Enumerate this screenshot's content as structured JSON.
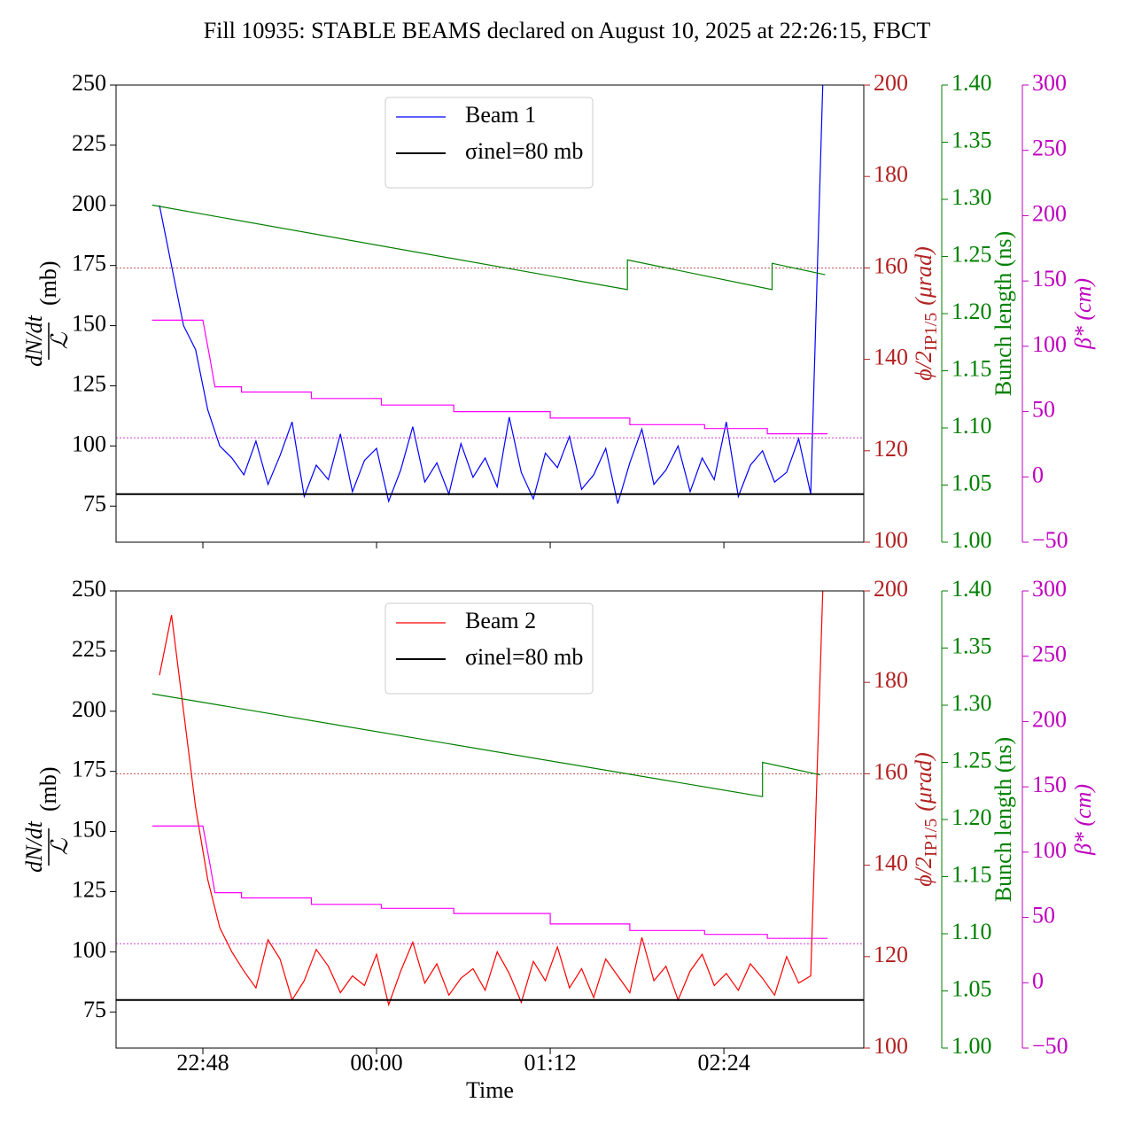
{
  "title": "Fill 10935: STABLE BEAMS declared on August 10, 2025 at 22:26:15, FBCT",
  "chart_data": [
    {
      "type": "line",
      "ylabel": [
        "dN/dt",
        "ℒ",
        "(mb)"
      ],
      "y2label": [
        "ϕ/2",
        "IP1/5",
        "(μrad)"
      ],
      "y3label": "Bunch length (ns)",
      "y4label": "β* (cm)",
      "axis_colors": {
        "y": "#000000",
        "y2": "#b22222",
        "y3": "#008000",
        "y4": "#bf00bf"
      },
      "xlim": [
        "22:12",
        "03:22"
      ],
      "xticks": [
        "22:48",
        "00:00",
        "01:12",
        "02:24"
      ],
      "xticklabels": false,
      "ylim": [
        60,
        250
      ],
      "yticks": [
        75,
        100,
        125,
        150,
        175,
        200,
        225,
        250
      ],
      "y2lim": [
        100,
        200
      ],
      "y2ticks": [
        100,
        120,
        140,
        160,
        180,
        200
      ],
      "y3lim": [
        1.0,
        1.4
      ],
      "y3ticks": [
        {
          "value": 1.0,
          "label": "1.00"
        },
        1.05,
        {
          "value": 1.1,
          "label": "1.10"
        },
        1.15,
        {
          "value": 1.2,
          "label": "1.20"
        },
        1.25,
        {
          "value": 1.3,
          "label": "1.30"
        },
        1.35,
        {
          "value": 1.4,
          "label": "1.40"
        }
      ],
      "y4lim": [
        -50,
        300
      ],
      "y4ticks": [
        {
          "value": -50,
          "label": "−50"
        },
        0,
        50,
        100,
        150,
        200,
        250,
        300
      ],
      "x": [
        "22:30",
        "22:35",
        "22:40",
        "22:45",
        "22:50",
        "22:55",
        "23:00",
        "23:05",
        "23:10",
        "23:15",
        "23:20",
        "23:25",
        "23:30",
        "23:35",
        "23:40",
        "23:45",
        "23:50",
        "23:55",
        "00:00",
        "00:05",
        "00:10",
        "00:15",
        "00:20",
        "00:25",
        "00:30",
        "00:35",
        "00:40",
        "00:45",
        "00:50",
        "00:55",
        "01:00",
        "01:05",
        "01:10",
        "01:15",
        "01:20",
        "01:25",
        "01:30",
        "01:35",
        "01:40",
        "01:45",
        "01:50",
        "01:55",
        "02:00",
        "02:05",
        "02:10",
        "02:15",
        "02:20",
        "02:25",
        "02:30",
        "02:35",
        "02:40",
        "02:45",
        "02:50",
        "02:55",
        "03:00",
        "03:05"
      ],
      "series": [
        {
          "name": "Beam 1",
          "color": "#0000ff",
          "axis": "y",
          "width": 1.2,
          "values": [
            200,
            175,
            150,
            140,
            115,
            100,
            95,
            88,
            102,
            84,
            96,
            110,
            79,
            92,
            86,
            105,
            81,
            94,
            99,
            77,
            90,
            108,
            85,
            93,
            80,
            101,
            87,
            95,
            83,
            112,
            89,
            78,
            97,
            91,
            104,
            82,
            88,
            99,
            76,
            93,
            107,
            84,
            90,
            100,
            81,
            95,
            86,
            110,
            79,
            92,
            98,
            85,
            89,
            103,
            80,
            250
          ]
        },
        {
          "name": "σinel=80 mb",
          "color": "#000000",
          "axis": "y",
          "width": 2,
          "x": [
            "22:12",
            "03:22"
          ],
          "values": [
            80,
            80
          ]
        },
        {
          "color": "#b22222",
          "axis": "y2",
          "width": 0.8,
          "dash": "2,2",
          "x": [
            "22:12",
            "03:22"
          ],
          "values": [
            160,
            160
          ]
        },
        {
          "color": "#bf00bf",
          "axis": "y4",
          "width": 0.8,
          "dash": "2,2",
          "x": [
            "22:12",
            "03:22"
          ],
          "values": [
            30,
            30
          ]
        },
        {
          "color": "#008000",
          "axis": "y3",
          "width": 1.2,
          "x": [
            "22:27",
            "01:44",
            "01:44",
            "02:44",
            "02:44",
            "03:06"
          ],
          "values": [
            1.295,
            1.221,
            1.247,
            1.221,
            1.244,
            1.234
          ]
        },
        {
          "color": "#ff00ff",
          "axis": "y4",
          "width": 1.2,
          "x": [
            "22:27",
            "22:48",
            "22:51",
            "22:53",
            "23:04",
            "23:04",
            "23:33",
            "23:33",
            "00:02",
            "00:02",
            "00:32",
            "00:32",
            "01:12",
            "01:12",
            "01:45",
            "01:45",
            "02:16",
            "02:16",
            "02:42",
            "02:42",
            "03:07"
          ],
          "values": [
            120,
            120,
            90,
            69,
            69,
            65,
            65,
            60,
            60,
            55,
            55,
            50,
            50,
            45,
            45,
            40,
            40,
            37,
            37,
            33,
            33
          ]
        }
      ]
    },
    {
      "type": "line",
      "ylabel": [
        "dN/dt",
        "ℒ",
        "(mb)"
      ],
      "y2label": [
        "ϕ/2",
        "IP1/5",
        "(μrad)"
      ],
      "y3label": "Bunch length (ns)",
      "y4label": "β* (cm)",
      "axis_colors": {
        "y": "#000000",
        "y2": "#b22222",
        "y3": "#008000",
        "y4": "#bf00bf"
      },
      "xlabel": "Time",
      "xlim": [
        "22:12",
        "03:22"
      ],
      "xticks": [
        "22:48",
        "00:00",
        "01:12",
        "02:24"
      ],
      "xticklabels": true,
      "ylim": [
        60,
        250
      ],
      "yticks": [
        75,
        100,
        125,
        150,
        175,
        200,
        225,
        250
      ],
      "y2lim": [
        100,
        200
      ],
      "y2ticks": [
        100,
        120,
        140,
        160,
        180,
        200
      ],
      "y3lim": [
        1.0,
        1.4
      ],
      "y3ticks": [
        {
          "value": 1.0,
          "label": "1.00"
        },
        1.05,
        {
          "value": 1.1,
          "label": "1.10"
        },
        1.15,
        {
          "value": 1.2,
          "label": "1.20"
        },
        1.25,
        {
          "value": 1.3,
          "label": "1.30"
        },
        1.35,
        {
          "value": 1.4,
          "label": "1.40"
        }
      ],
      "y4lim": [
        -50,
        300
      ],
      "y4ticks": [
        {
          "value": -50,
          "label": "−50"
        },
        0,
        50,
        100,
        150,
        200,
        250,
        300
      ],
      "x": [
        "22:30",
        "22:35",
        "22:40",
        "22:45",
        "22:50",
        "22:55",
        "23:00",
        "23:05",
        "23:10",
        "23:15",
        "23:20",
        "23:25",
        "23:30",
        "23:35",
        "23:40",
        "23:45",
        "23:50",
        "23:55",
        "00:00",
        "00:05",
        "00:10",
        "00:15",
        "00:20",
        "00:25",
        "00:30",
        "00:35",
        "00:40",
        "00:45",
        "00:50",
        "00:55",
        "01:00",
        "01:05",
        "01:10",
        "01:15",
        "01:20",
        "01:25",
        "01:30",
        "01:35",
        "01:40",
        "01:45",
        "01:50",
        "01:55",
        "02:00",
        "02:05",
        "02:10",
        "02:15",
        "02:20",
        "02:25",
        "02:30",
        "02:35",
        "02:40",
        "02:45",
        "02:50",
        "02:55",
        "03:00",
        "03:05"
      ],
      "series": [
        {
          "name": "Beam 2",
          "color": "#ff0000",
          "axis": "y",
          "width": 1.2,
          "values": [
            215,
            240,
            200,
            160,
            130,
            110,
            100,
            92,
            85,
            105,
            97,
            80,
            88,
            101,
            94,
            83,
            90,
            86,
            99,
            78,
            92,
            104,
            87,
            95,
            82,
            89,
            93,
            84,
            100,
            91,
            79,
            96,
            88,
            102,
            85,
            93,
            81,
            97,
            90,
            83,
            106,
            88,
            94,
            80,
            92,
            99,
            86,
            91,
            84,
            95,
            89,
            82,
            98,
            87,
            90,
            250
          ]
        },
        {
          "name": "σinel=80 mb",
          "color": "#000000",
          "axis": "y",
          "width": 2,
          "x": [
            "22:12",
            "03:22"
          ],
          "values": [
            80,
            80
          ]
        },
        {
          "color": "#b22222",
          "axis": "y2",
          "width": 0.8,
          "dash": "2,2",
          "x": [
            "22:12",
            "03:22"
          ],
          "values": [
            160,
            160
          ]
        },
        {
          "color": "#bf00bf",
          "axis": "y4",
          "width": 0.8,
          "dash": "2,2",
          "x": [
            "22:12",
            "03:22"
          ],
          "values": [
            30,
            30
          ]
        },
        {
          "color": "#008000",
          "axis": "y3",
          "width": 1.2,
          "x": [
            "22:27",
            "02:40",
            "02:40",
            "03:04"
          ],
          "values": [
            1.31,
            1.22,
            1.25,
            1.239
          ]
        },
        {
          "color": "#ff00ff",
          "axis": "y4",
          "width": 1.2,
          "x": [
            "22:27",
            "22:48",
            "22:51",
            "22:53",
            "23:04",
            "23:04",
            "23:33",
            "23:33",
            "00:02",
            "00:02",
            "00:32",
            "00:32",
            "01:12",
            "01:12",
            "01:45",
            "01:45",
            "02:16",
            "02:16",
            "02:42",
            "02:42",
            "03:07"
          ],
          "values": [
            120,
            120,
            90,
            69,
            69,
            65,
            65,
            60,
            60,
            57,
            57,
            53,
            53,
            45,
            45,
            40,
            40,
            37,
            37,
            34,
            34
          ]
        }
      ]
    }
  ]
}
